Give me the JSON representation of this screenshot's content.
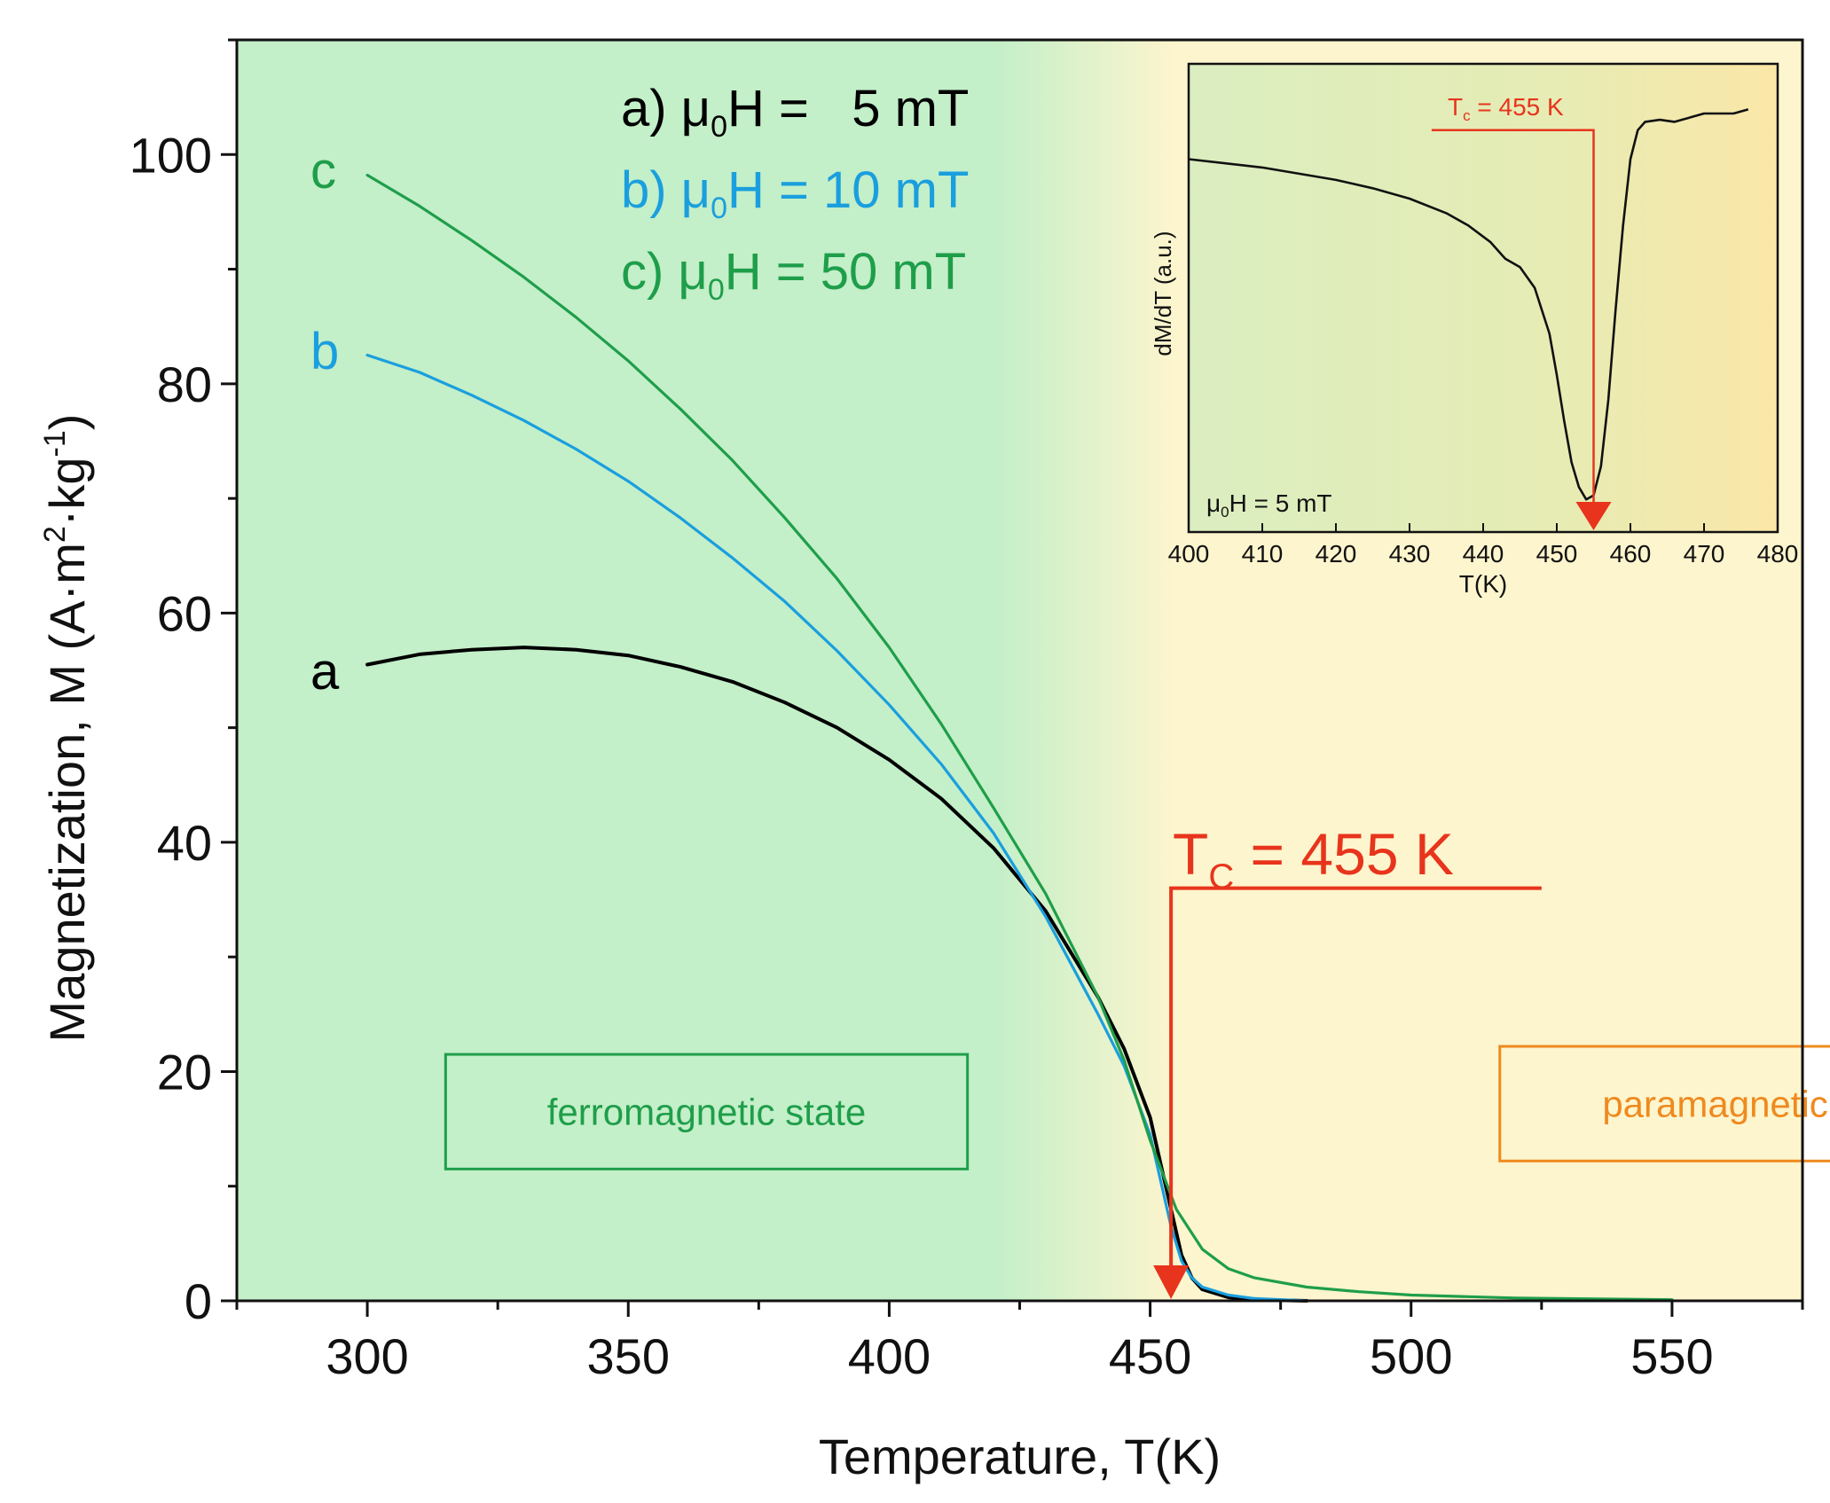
{
  "chart_data": {
    "main": {
      "type": "line",
      "xlabel": "Temperature, T(K)",
      "ylabel": "Magnetization, M (A·m²·kg⁻¹)",
      "ylabel_parts": {
        "prefix": "Magnetization, M (A·m",
        "exp1": "2",
        "mid": "·kg",
        "exp2": "-1",
        "suffix": ")"
      },
      "xlim": [
        275,
        575
      ],
      "ylim": [
        0,
        110
      ],
      "xticks": [
        300,
        350,
        400,
        450,
        500,
        550
      ],
      "yticks": [
        0,
        20,
        40,
        60,
        80,
        100
      ],
      "x_minor_step": 25,
      "y_minor_step": 10,
      "background": {
        "ferro_color": "#c3efc9",
        "para_color": "#fdf5cd",
        "transition_start": 420,
        "transition_end": 455
      },
      "series": [
        {
          "name": "a",
          "label_text": "a",
          "color": "#000000",
          "x": [
            300,
            310,
            320,
            330,
            340,
            350,
            360,
            370,
            380,
            390,
            400,
            410,
            420,
            430,
            440,
            445,
            450,
            452,
            454,
            456,
            458,
            460,
            465,
            470,
            480
          ],
          "y": [
            55.5,
            56.4,
            56.8,
            57.0,
            56.8,
            56.3,
            55.3,
            54.0,
            52.2,
            50.0,
            47.2,
            43.8,
            39.5,
            34.0,
            26.5,
            22.0,
            16.0,
            12.0,
            8.0,
            4.0,
            2.0,
            1.0,
            0.3,
            0.1,
            0.0
          ]
        },
        {
          "name": "b",
          "label_text": "b",
          "color": "#1a9fde",
          "x": [
            300,
            310,
            320,
            330,
            340,
            350,
            360,
            370,
            380,
            390,
            400,
            410,
            420,
            430,
            440,
            445,
            450,
            452,
            454,
            456,
            458,
            460,
            465,
            470,
            480
          ],
          "y": [
            82.5,
            81.0,
            79.0,
            76.8,
            74.3,
            71.5,
            68.3,
            64.8,
            61.0,
            56.7,
            52.0,
            46.8,
            40.8,
            33.5,
            25.0,
            20.5,
            14.5,
            10.5,
            6.5,
            3.5,
            2.0,
            1.2,
            0.5,
            0.2,
            0.0
          ]
        },
        {
          "name": "c",
          "label_text": "c",
          "color": "#1f9e4a",
          "x": [
            300,
            310,
            320,
            330,
            340,
            350,
            360,
            370,
            380,
            390,
            400,
            410,
            420,
            430,
            440,
            445,
            450,
            455,
            460,
            465,
            470,
            480,
            490,
            500,
            520,
            550
          ],
          "y": [
            98.2,
            95.5,
            92.5,
            89.3,
            85.8,
            82.0,
            77.8,
            73.3,
            68.3,
            63.0,
            57.0,
            50.3,
            43.0,
            35.5,
            26.5,
            21.0,
            14.0,
            8.0,
            4.5,
            2.8,
            2.0,
            1.2,
            0.8,
            0.5,
            0.25,
            0.1
          ]
        }
      ],
      "legend": [
        {
          "label": "a) μ₀H =   5 mT",
          "prefix": "a) μ",
          "sub": "0",
          "rest": "H =   5 mT",
          "color": "#000000"
        },
        {
          "label": "b) μ₀H = 10 mT",
          "prefix": "b) μ",
          "sub": "0",
          "rest": "H = 10 mT",
          "color": "#1a9fde"
        },
        {
          "label": "c) μ₀H = 50 mT",
          "prefix": "c) μ",
          "sub": "0",
          "rest": "H = 50 mT",
          "color": "#1f9e4a"
        }
      ],
      "tc_annotation": {
        "label": "Tc = 455 K",
        "main": "T",
        "sub": "C",
        "rest": " = 455 K",
        "x": 454,
        "line_y": 36,
        "line_x_end": 525,
        "color": "#e8341c"
      },
      "state_boxes": [
        {
          "label": "ferromagnetic state",
          "color": "#1f9e4a",
          "x0": 315,
          "x1": 415,
          "y0": 11.5,
          "y1": 21.5
        },
        {
          "label": "paramagnetic state",
          "color": "#ef8a1f",
          "x0": 517,
          "x1": 617,
          "y0": 12.2,
          "y1": 22.2
        }
      ]
    },
    "inset": {
      "type": "line",
      "xlabel": "T(K)",
      "ylabel": "dM/dT (a.u.)",
      "xlim": [
        400,
        480
      ],
      "ylim": [
        0,
        1
      ],
      "xticks": [
        400,
        410,
        420,
        430,
        440,
        450,
        460,
        470,
        480
      ],
      "annotation": "μ₀H = 5 mT",
      "annotation_parts": {
        "prefix": "μ",
        "sub": "0",
        "rest": "H = 5 mT"
      },
      "background": {
        "ferro_color": "#dbeec0",
        "para_color": "#fbe7a8"
      },
      "series": [
        {
          "name": "dM/dT",
          "color": "#111111",
          "x": [
            400,
            405,
            410,
            415,
            420,
            425,
            430,
            435,
            438,
            441,
            443,
            445,
            447,
            449,
            450,
            451,
            452,
            453,
            454,
            455,
            456,
            457,
            458,
            459,
            460,
            461,
            462,
            464,
            466,
            468,
            470,
            472,
            474,
            476
          ],
          "y": [
            0.86,
            0.85,
            0.84,
            0.825,
            0.81,
            0.79,
            0.765,
            0.73,
            0.7,
            0.66,
            0.62,
            0.6,
            0.55,
            0.44,
            0.34,
            0.23,
            0.13,
            0.07,
            0.04,
            0.05,
            0.12,
            0.28,
            0.5,
            0.7,
            0.86,
            0.93,
            0.95,
            0.955,
            0.95,
            0.96,
            0.97,
            0.97,
            0.97,
            0.98
          ]
        }
      ],
      "tc_annotation": {
        "label": "Tc = 455 K",
        "main": "T",
        "sub": "c",
        "rest": " = 455 K",
        "x": 455,
        "line_x_start": 433,
        "line_y": 0.93,
        "color": "#e8341c"
      }
    }
  }
}
